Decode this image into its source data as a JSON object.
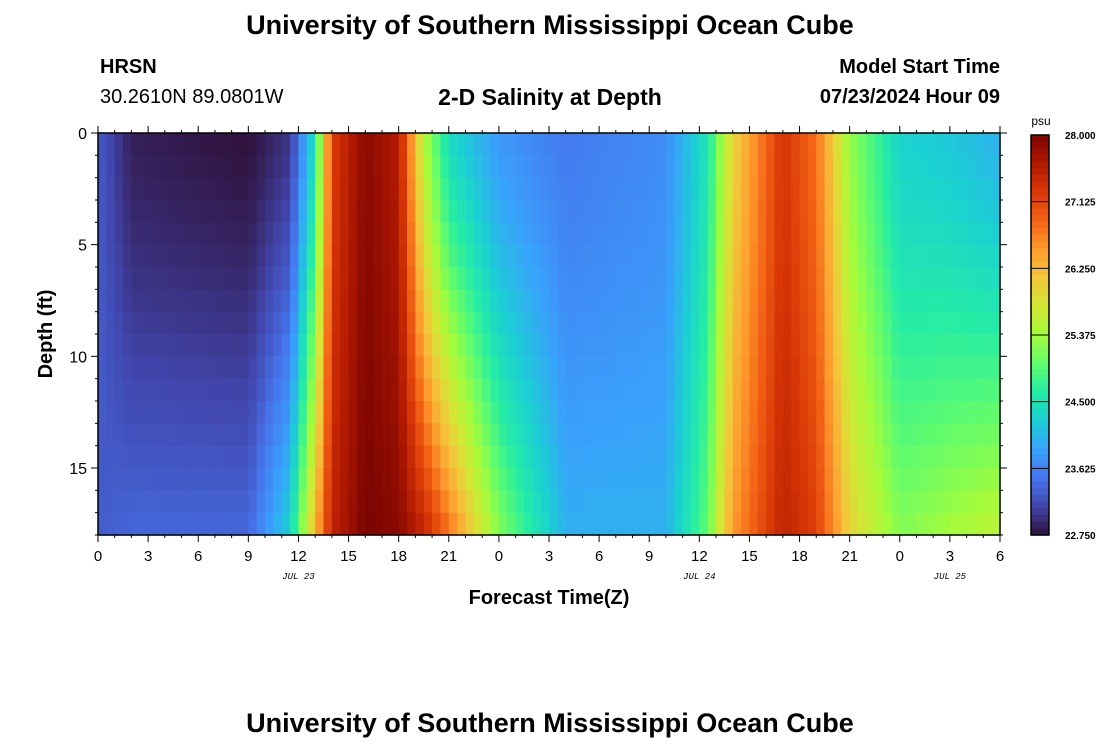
{
  "header": {
    "title": "University of Southern Mississippi Ocean Cube",
    "station": "HRSN",
    "coordinates": "30.2610N  89.0801W",
    "subtitle": "2-D Salinity at Depth",
    "model_start_label": "Model Start Time",
    "model_start_value": "07/23/2024 Hour 09"
  },
  "footer": {
    "title": "University of Southern Mississippi Ocean Cube"
  },
  "chart_data": {
    "type": "heatmap",
    "title": "2-D Salinity at Depth",
    "xlabel": "Forecast Time(Z)",
    "ylabel": "Depth (ft)",
    "x_hours_range": [
      0,
      54
    ],
    "x_tick_labels": [
      "0",
      "3",
      "6",
      "9",
      "12",
      "15",
      "18",
      "21",
      "0",
      "3",
      "6",
      "9",
      "12",
      "15",
      "18",
      "21",
      "0",
      "3",
      "6"
    ],
    "date_labels": [
      {
        "label": "JUL 23",
        "hour": 12
      },
      {
        "label": "JUL 24",
        "hour": 36
      },
      {
        "label": "JUL 25",
        "hour": 51
      }
    ],
    "ylim": [
      0,
      18
    ],
    "y_ticks": [
      0,
      5,
      10,
      15
    ],
    "colorbar": {
      "unit": "psu",
      "min": 22.75,
      "max": 28.0,
      "tick_labels": [
        "28.000",
        "27.125",
        "26.250",
        "25.375",
        "24.500",
        "23.625",
        "22.750"
      ],
      "colors": [
        "#30123b",
        "#4145ab",
        "#4675ed",
        "#39a2fc",
        "#1bcfd4",
        "#24eca6",
        "#61fc6c",
        "#a4fc3b",
        "#d1e834",
        "#f3c63a",
        "#fe9b2d",
        "#f36315",
        "#d93806",
        "#b11901",
        "#7a0402"
      ]
    },
    "anchor_profiles": [
      {
        "hour": 0,
        "surface": 23.3,
        "bottom": 23.3
      },
      {
        "hour": 2,
        "surface": 22.85,
        "bottom": 23.4
      },
      {
        "hour": 9,
        "surface": 22.75,
        "bottom": 23.4
      },
      {
        "hour": 11.5,
        "surface": 23.0,
        "bottom": 24.3
      },
      {
        "hour": 13,
        "surface": 24.5,
        "bottom": 26.3
      },
      {
        "hour": 14,
        "surface": 27.2,
        "bottom": 27.5
      },
      {
        "hour": 16,
        "surface": 27.9,
        "bottom": 28.0
      },
      {
        "hour": 18,
        "surface": 27.6,
        "bottom": 27.9
      },
      {
        "hour": 19.5,
        "surface": 25.5,
        "bottom": 27.5
      },
      {
        "hour": 21,
        "surface": 24.4,
        "bottom": 26.8
      },
      {
        "hour": 24,
        "surface": 23.8,
        "bottom": 25.2
      },
      {
        "hour": 28,
        "surface": 23.55,
        "bottom": 24.0
      },
      {
        "hour": 34,
        "surface": 23.7,
        "bottom": 24.0
      },
      {
        "hour": 36.5,
        "surface": 24.5,
        "bottom": 25.0
      },
      {
        "hour": 38,
        "surface": 26.0,
        "bottom": 26.5
      },
      {
        "hour": 41,
        "surface": 27.3,
        "bottom": 27.5
      },
      {
        "hour": 43,
        "surface": 26.8,
        "bottom": 27.2
      },
      {
        "hour": 45,
        "surface": 25.3,
        "bottom": 26.0
      },
      {
        "hour": 48,
        "surface": 24.3,
        "bottom": 25.2
      },
      {
        "hour": 51,
        "surface": 24.2,
        "bottom": 25.4
      },
      {
        "hour": 54,
        "surface": 24.0,
        "bottom": 25.6
      }
    ]
  }
}
